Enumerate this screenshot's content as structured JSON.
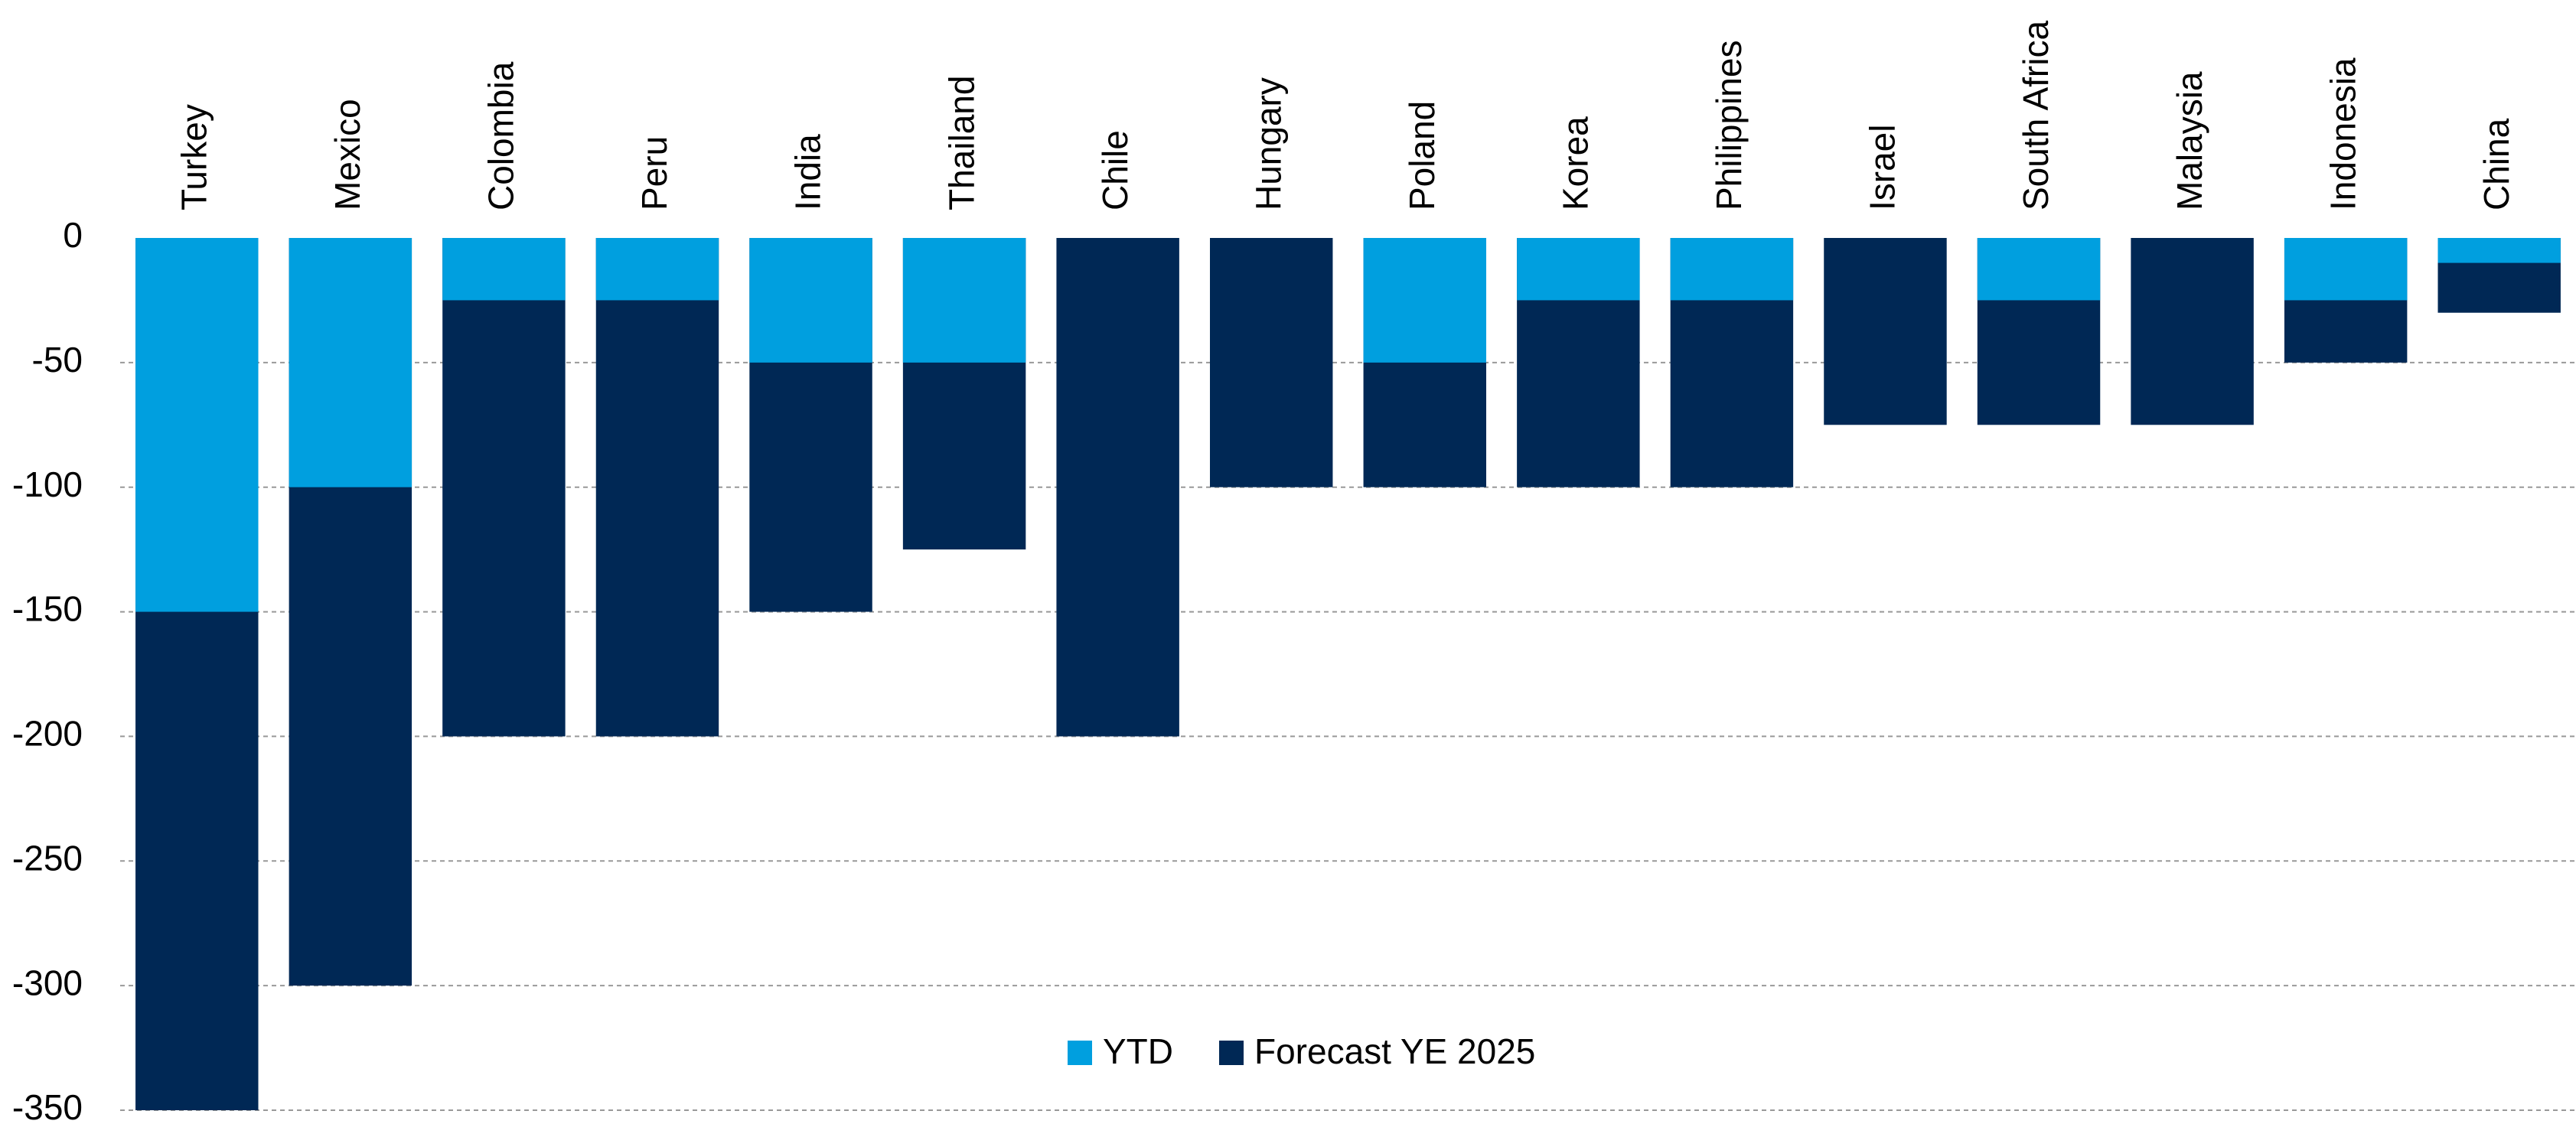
{
  "chart_data": {
    "type": "bar",
    "categories": [
      "Turkey",
      "Mexico",
      "Colombia",
      "Peru",
      "India",
      "Thailand",
      "Chile",
      "Hungary",
      "Poland",
      "Korea",
      "Philippines",
      "Israel",
      "South Africa",
      "Malaysia",
      "Indonesia",
      "China"
    ],
    "series": [
      {
        "name": "Forecast YE 2025",
        "color": "#002855",
        "values": [
          -350,
          -300,
          -200,
          -200,
          -150,
          -125,
          -200,
          -100,
          -100,
          -100,
          -100,
          -75,
          -75,
          -75,
          -50,
          -30
        ]
      },
      {
        "name": "YTD",
        "color": "#009fdf",
        "values": [
          -150,
          -100,
          -25,
          -25,
          -50,
          -50,
          0,
          0,
          -50,
          -25,
          -25,
          0,
          -25,
          0,
          -25,
          -10
        ]
      }
    ],
    "ylim": [
      -350,
      0
    ],
    "yticks": [
      0,
      -50,
      -100,
      -150,
      -200,
      -250,
      -300,
      -350
    ],
    "grid": true,
    "legend": "bottom"
  }
}
